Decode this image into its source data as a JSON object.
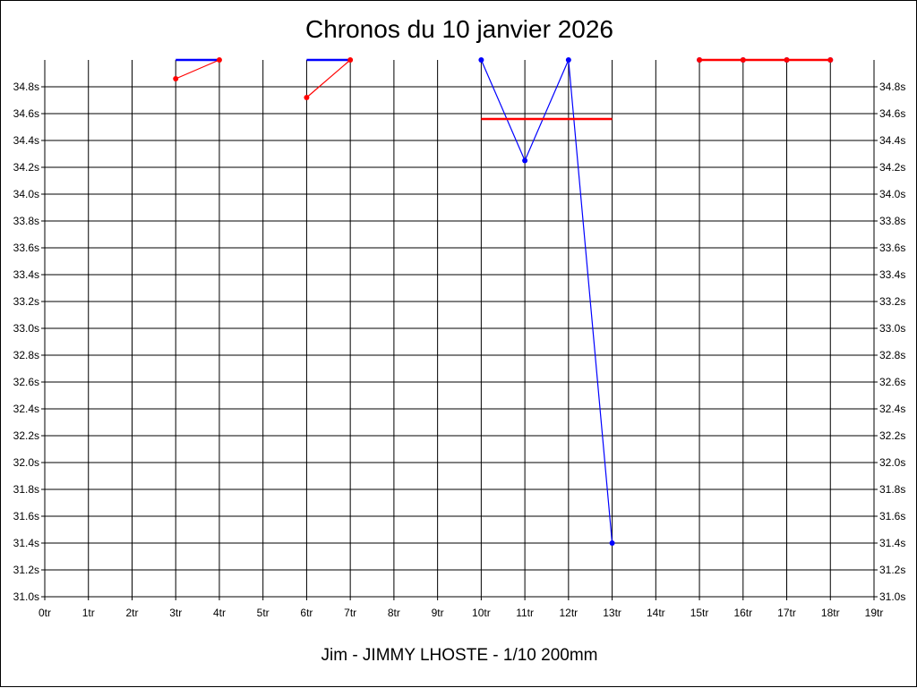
{
  "chart_data": {
    "type": "line",
    "title": "Chronos du 10 janvier 2026",
    "subtitle": "Jim - JIMMY LHOSTE - 1/10 200mm",
    "x_ticks": [
      "0tr",
      "1tr",
      "2tr",
      "3tr",
      "4tr",
      "5tr",
      "6tr",
      "7tr",
      "8tr",
      "9tr",
      "10tr",
      "11tr",
      "12tr",
      "13tr",
      "14tr",
      "15tr",
      "16tr",
      "17tr",
      "18tr",
      "19tr"
    ],
    "y_ticks": [
      "31.0s",
      "31.2s",
      "31.4s",
      "31.6s",
      "31.8s",
      "32.0s",
      "32.2s",
      "32.4s",
      "32.6s",
      "32.8s",
      "33.0s",
      "33.2s",
      "33.4s",
      "33.6s",
      "33.8s",
      "34.0s",
      "34.2s",
      "34.4s",
      "34.6s",
      "34.8s"
    ],
    "xlim": [
      0,
      19
    ],
    "ylim": [
      31.0,
      35.0
    ],
    "grid": true,
    "series": [
      {
        "color": "#0000ff",
        "segments": [
          [
            [
              3,
              35.0
            ],
            [
              4,
              35.0
            ]
          ],
          [
            [
              6,
              35.0
            ],
            [
              7,
              35.0
            ]
          ],
          [
            [
              10,
              35.0
            ],
            [
              11,
              34.25
            ],
            [
              12,
              35.0
            ],
            [
              13,
              31.4
            ]
          ],
          [
            [
              15,
              35.0
            ],
            [
              16,
              35.0
            ],
            [
              17,
              35.0
            ],
            [
              18,
              35.0
            ]
          ]
        ]
      },
      {
        "color": "#ff0000",
        "segments": [
          [
            [
              3,
              34.86
            ],
            [
              4,
              35.0
            ]
          ],
          [
            [
              6,
              34.72
            ],
            [
              7,
              35.0
            ]
          ],
          [
            [
              10,
              34.56
            ],
            [
              13,
              34.56
            ]
          ],
          [
            [
              15,
              35.0
            ],
            [
              16,
              35.0
            ],
            [
              17,
              35.0
            ],
            [
              18,
              35.0
            ]
          ]
        ]
      }
    ]
  }
}
